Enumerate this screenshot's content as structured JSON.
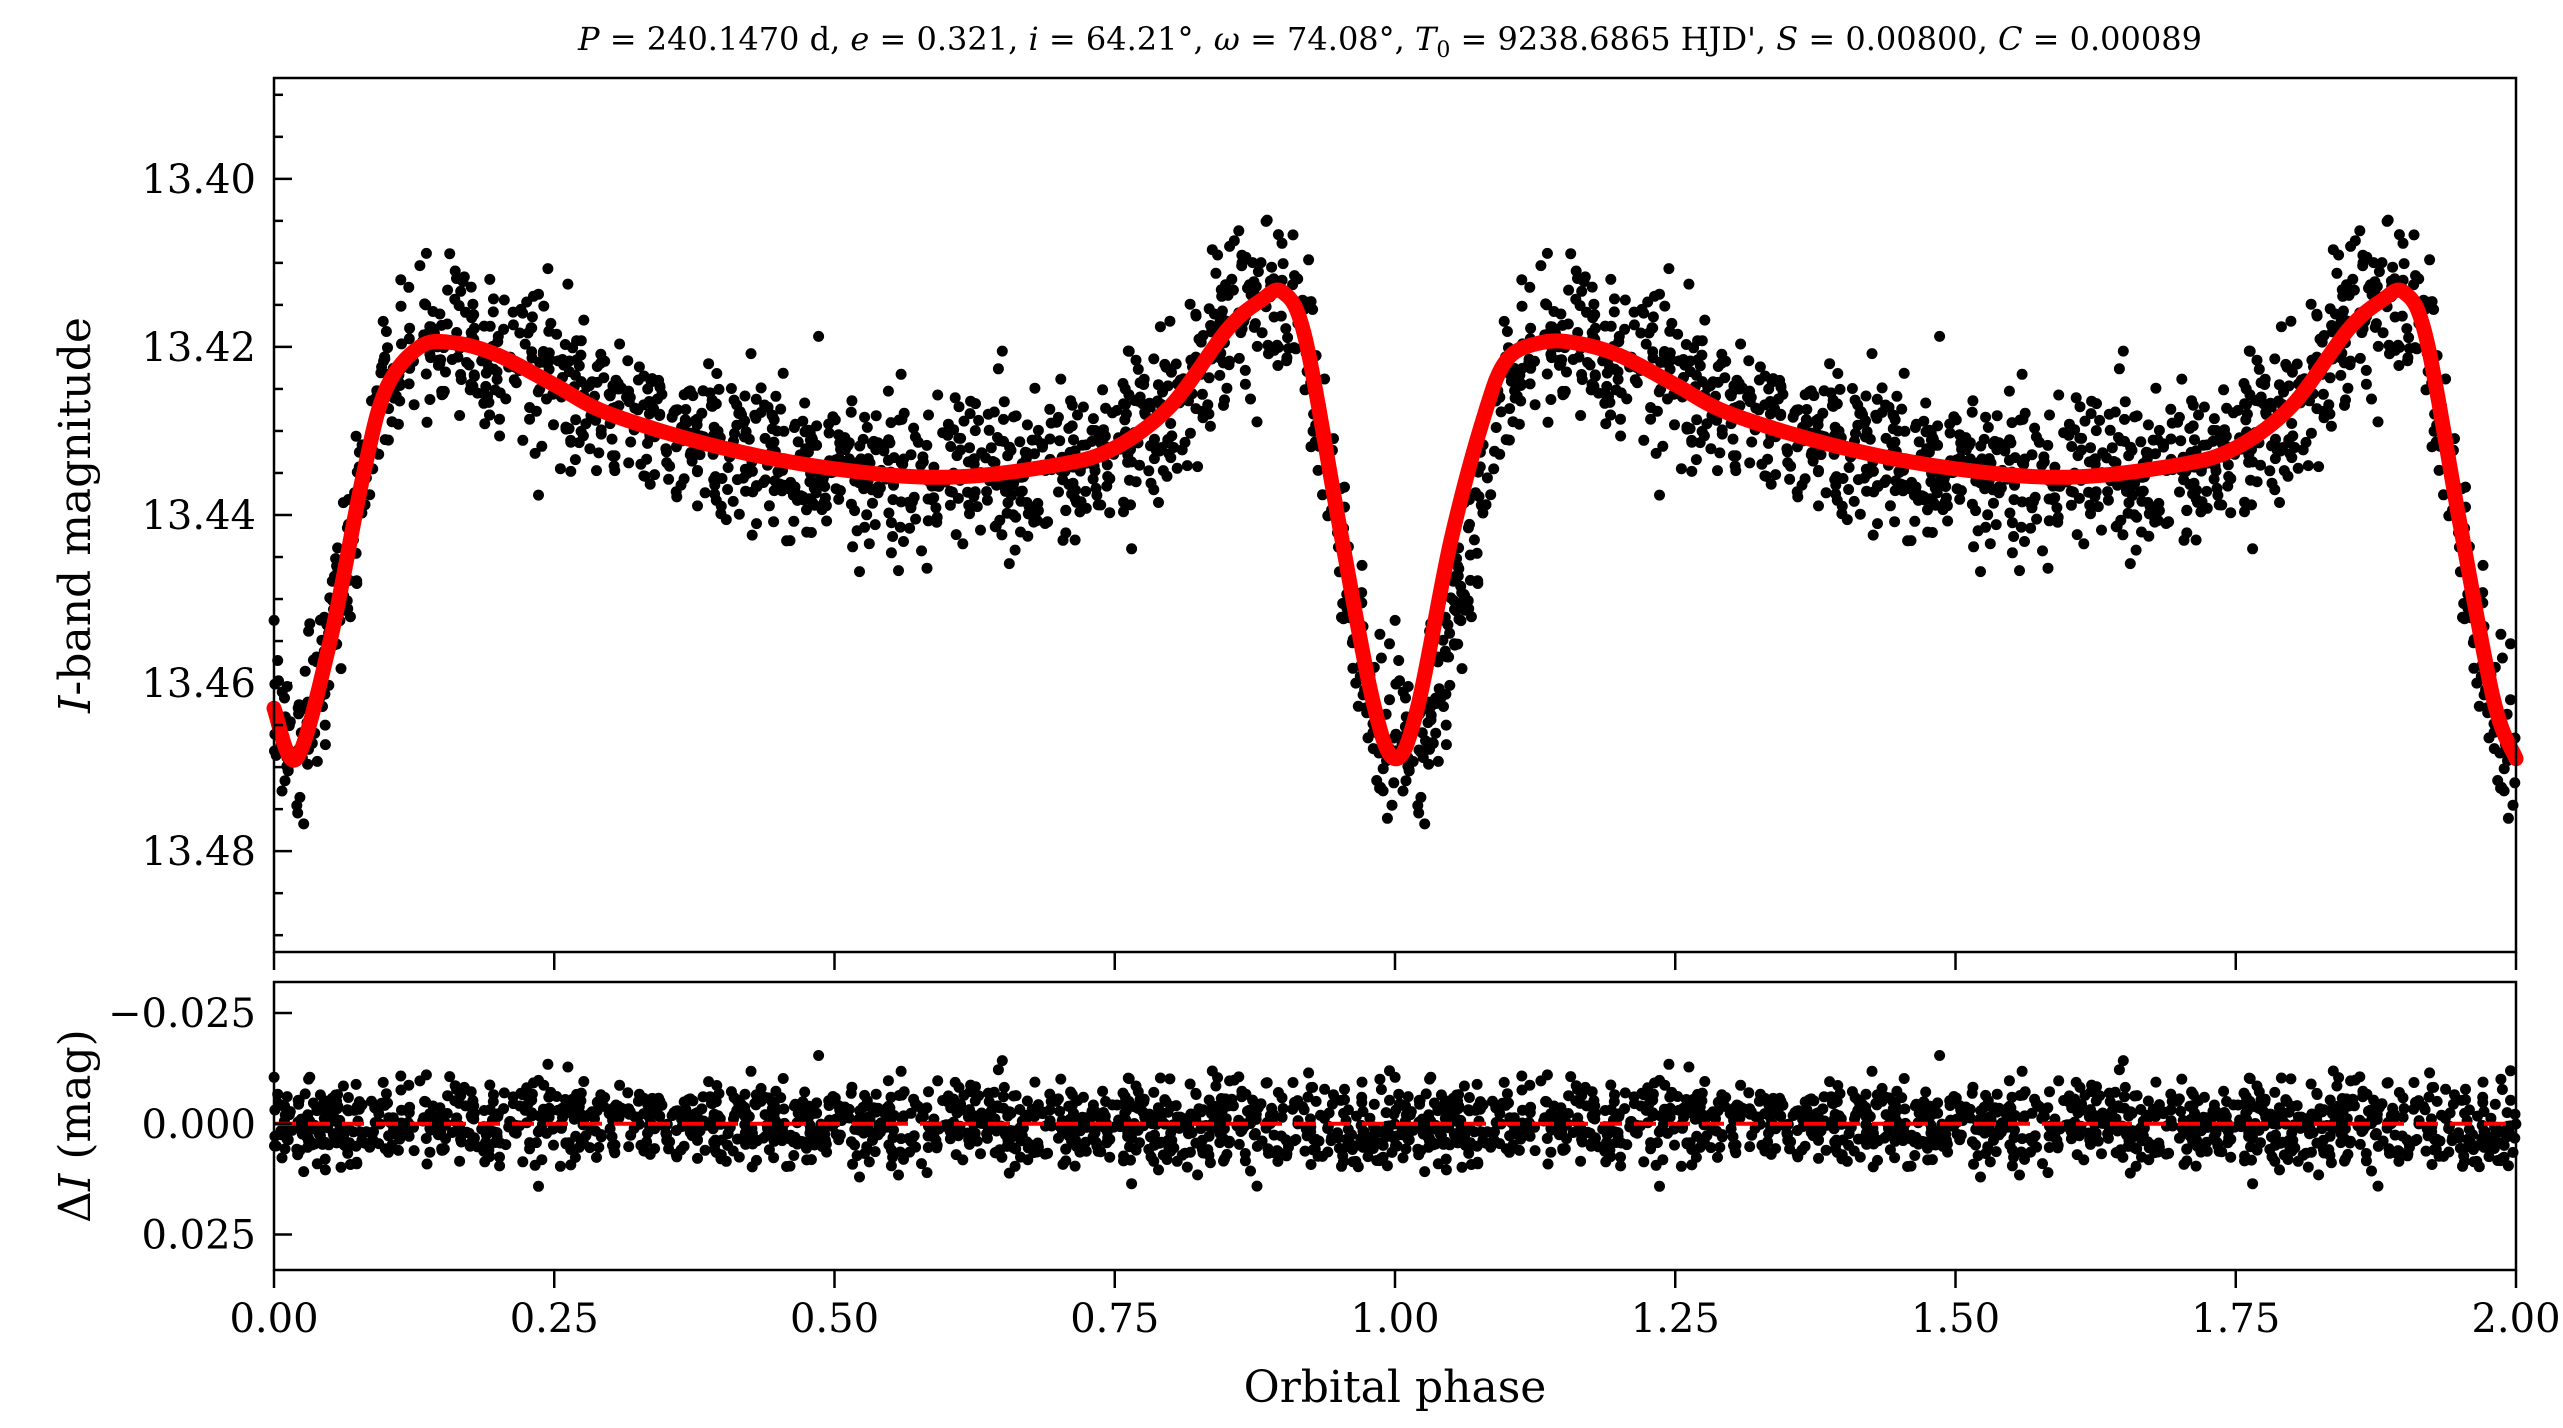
{
  "chart_data": [
    {
      "type": "scatter",
      "panel": "light-curve",
      "title": "P = 240.1470 d, e = 0.321, i = 64.21°, ω = 74.08°, T0 = 9238.6865 HJD', S = 0.00800, C = 0.00089",
      "title_parts": {
        "P_sym": "P",
        "P_val": " = 240.1470 d, ",
        "e_sym": "e",
        "e_val": " = 0.321, ",
        "i_sym": "i",
        "i_val": " = 64.21°, ",
        "w_sym": "ω",
        "w_val": " = 74.08°, ",
        "T_sym": "T",
        "T_sub": "0",
        "T_val": " = 9238.6865 HJD', ",
        "S_sym": "S",
        "S_val": " = 0.00800, ",
        "C_sym": "C",
        "C_val": " = 0.00089"
      },
      "ylabel": "I-band magnitude",
      "ylabel_parts": {
        "sym": "I",
        "rest": "-band magnitude"
      },
      "xlim": [
        0.0,
        2.0
      ],
      "ylim": [
        13.492,
        13.388
      ],
      "y_inverted": true,
      "yticks": [
        "13.40",
        "13.42",
        "13.44",
        "13.46",
        "13.48"
      ],
      "grid": false,
      "series": [
        {
          "style": "points",
          "color": "#000000",
          "note": "observed photometry (~1300 points per phase cycle, repeated over phase 0–2)"
        },
        {
          "style": "line",
          "color": "#ff0000",
          "x": [
            0.0,
            0.02,
            0.05,
            0.08,
            0.1,
            0.13,
            0.16,
            0.2,
            0.25,
            0.3,
            0.4,
            0.5,
            0.6,
            0.7,
            0.75,
            0.8,
            0.85,
            0.88,
            0.9,
            0.92,
            0.95,
            0.98,
            1.0,
            1.02,
            1.05,
            1.08,
            1.1,
            1.13,
            1.16,
            1.2,
            1.25,
            1.3,
            1.4,
            1.5,
            1.6,
            1.7,
            1.75,
            1.8,
            1.85,
            1.88,
            1.9,
            1.92,
            1.95,
            1.98,
            2.0
          ],
          "y": [
            13.463,
            13.469,
            13.455,
            13.435,
            13.425,
            13.42,
            13.4195,
            13.421,
            13.4245,
            13.428,
            13.432,
            13.4345,
            13.4355,
            13.434,
            13.432,
            13.427,
            13.418,
            13.4145,
            13.4135,
            13.419,
            13.441,
            13.462,
            13.469,
            13.463,
            13.443,
            13.428,
            13.4215,
            13.4195,
            13.4195,
            13.421,
            13.4245,
            13.428,
            13.432,
            13.4345,
            13.4355,
            13.434,
            13.432,
            13.427,
            13.418,
            13.4145,
            13.4135,
            13.419,
            13.441,
            13.462,
            13.469
          ]
        }
      ]
    },
    {
      "type": "scatter",
      "panel": "residuals",
      "xlabel": "Orbital phase",
      "ylabel": "ΔI (mag)",
      "ylabel_parts": {
        "delta": "Δ",
        "sym": "I",
        "rest": " (mag)"
      },
      "xlim": [
        0.0,
        2.0
      ],
      "ylim": [
        0.033,
        -0.032
      ],
      "y_inverted": true,
      "yticks": [
        "−0.025",
        "0.000",
        "0.025"
      ],
      "xticks": [
        "0.00",
        "0.25",
        "0.50",
        "0.75",
        "1.00",
        "1.25",
        "1.50",
        "1.75",
        "2.00"
      ],
      "grid": false,
      "series": [
        {
          "style": "points",
          "color": "#000000",
          "note": "residuals, scatter about ±0.01 mag"
        },
        {
          "style": "dashed-line",
          "color": "#ff0000",
          "y": 0.0
        }
      ]
    }
  ]
}
